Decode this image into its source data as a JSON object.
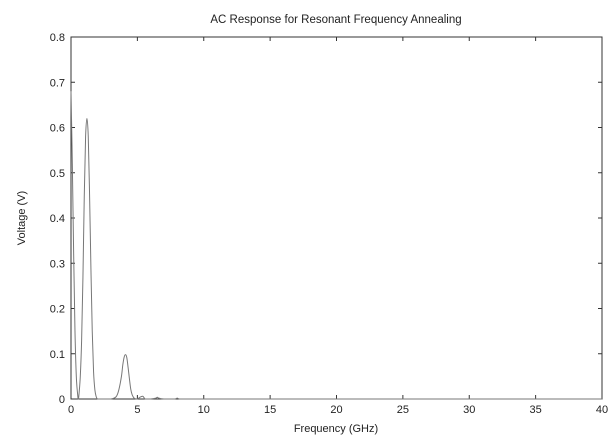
{
  "chart_data": {
    "type": "line",
    "title": "AC Response for Resonant Frequency Annealing",
    "xlabel": "Frequency (GHz)",
    "ylabel": "Voltage (V)",
    "xlim": [
      0,
      40
    ],
    "ylim": [
      0,
      0.8
    ],
    "xticks": [
      0,
      5,
      10,
      15,
      20,
      25,
      30,
      35,
      40
    ],
    "xtick_labels": [
      "0",
      "5",
      "10",
      "15",
      "20",
      "25",
      "30",
      "35",
      "40"
    ],
    "yticks": [
      0,
      0.1,
      0.2,
      0.3,
      0.4,
      0.5,
      0.6,
      0.7,
      0.8
    ],
    "ytick_labels": [
      "0",
      "0.1",
      "0.2",
      "0.3",
      "0.4",
      "0.5",
      "0.6",
      "0.7",
      "0.8"
    ],
    "grid": false,
    "series": [
      {
        "color": "#777777",
        "x": [
          0,
          0.1,
          0.2,
          0.3,
          0.4,
          0.5,
          0.55,
          0.6,
          0.7,
          0.8,
          0.9,
          1.0,
          1.1,
          1.2,
          1.3,
          1.4,
          1.5,
          1.6,
          1.7,
          1.8,
          1.9,
          2.0,
          2.2,
          2.5,
          3.0,
          3.4,
          3.6,
          3.8,
          3.9,
          4.0,
          4.1,
          4.2,
          4.3,
          4.4,
          4.5,
          4.6,
          4.7,
          4.8,
          5.0,
          5.2,
          5.4,
          5.5,
          5.6,
          6.0,
          6.4,
          6.5,
          6.6,
          7.0,
          7.8,
          8.0,
          8.2,
          9.0,
          10,
          20,
          30,
          40
        ],
        "y": [
          0.68,
          0.52,
          0.32,
          0.15,
          0.05,
          0.01,
          0.0,
          0.01,
          0.05,
          0.13,
          0.27,
          0.45,
          0.58,
          0.62,
          0.58,
          0.45,
          0.29,
          0.15,
          0.06,
          0.02,
          0.005,
          0.0,
          0.0,
          0.0,
          0.0,
          0.005,
          0.02,
          0.05,
          0.075,
          0.092,
          0.098,
          0.092,
          0.07,
          0.045,
          0.022,
          0.01,
          0.004,
          0.001,
          0.0,
          0.004,
          0.006,
          0.003,
          0.0,
          0.0,
          0.002,
          0.004,
          0.002,
          0.0,
          0.0,
          0.002,
          0.0,
          0.0,
          0.0,
          0.0,
          0.0,
          0.0
        ]
      }
    ]
  }
}
